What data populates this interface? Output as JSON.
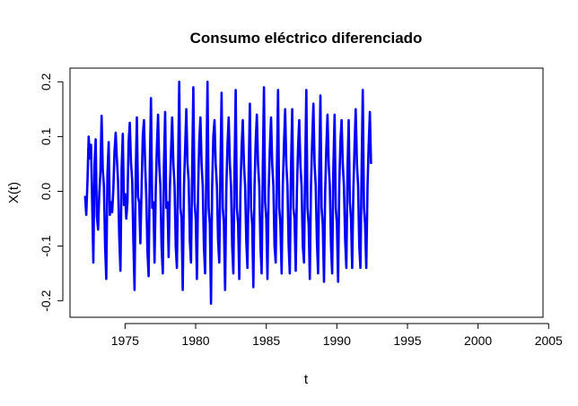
{
  "chart_data": {
    "type": "line",
    "title": "Consumo eléctrico diferenciado",
    "xlabel": "t",
    "ylabel": "X(t)",
    "xlim": [
      1971.1,
      2004.6
    ],
    "ylim": [
      -0.23,
      0.225
    ],
    "x_ticks": [
      1975,
      1980,
      1985,
      1990,
      1995,
      2000,
      2005
    ],
    "x_tick_labels": [
      "1975",
      "1980",
      "1985",
      "1990",
      "1995",
      "2000",
      "2005"
    ],
    "y_ticks": [
      -0.2,
      -0.1,
      0.0,
      0.1,
      0.2
    ],
    "y_tick_labels": [
      "-0.2",
      "-0.1",
      "0.0",
      "0.1",
      "0.2"
    ],
    "grid": false,
    "legend": "none",
    "series": [
      {
        "color": "#0000ff",
        "frequency": 12,
        "start": 1972.17,
        "values": [
          -0.008,
          -0.043,
          0.02,
          0.1,
          0.06,
          0.085,
          -0.02,
          -0.13,
          0.05,
          0.095,
          -0.045,
          -0.07,
          -0.005,
          0.035,
          0.138,
          0.04,
          0.01,
          -0.1,
          -0.16,
          0.03,
          0.09,
          -0.043,
          -0.02,
          -0.038,
          0.004,
          0.073,
          0.107,
          0.06,
          0.02,
          -0.08,
          -0.145,
          0.04,
          0.105,
          -0.025,
          -0.005,
          -0.05,
          -0.02,
          0.09,
          0.125,
          0.05,
          0.02,
          -0.09,
          -0.18,
          0.03,
          0.135,
          -0.01,
          -0.02,
          -0.095,
          0.01,
          0.1,
          0.13,
          0.05,
          -0.01,
          -0.11,
          -0.155,
          0.04,
          0.17,
          -0.03,
          -0.02,
          -0.13,
          0.0,
          0.08,
          0.14,
          0.05,
          0.01,
          -0.1,
          -0.15,
          0.05,
          0.145,
          -0.03,
          -0.02,
          -0.12,
          0.0,
          0.07,
          0.135,
          0.05,
          0.01,
          -0.1,
          -0.14,
          0.04,
          0.2,
          -0.03,
          -0.05,
          -0.18,
          0.01,
          0.08,
          0.15,
          0.05,
          0.02,
          -0.09,
          -0.13,
          0.04,
          0.19,
          -0.02,
          -0.05,
          -0.16,
          0.0,
          0.09,
          0.135,
          0.05,
          0.01,
          -0.1,
          -0.15,
          0.04,
          0.2,
          -0.03,
          -0.06,
          -0.205,
          0.01,
          0.1,
          0.13,
          0.05,
          0.01,
          -0.09,
          -0.13,
          0.04,
          0.18,
          -0.03,
          -0.06,
          -0.18,
          0.0,
          0.085,
          0.135,
          0.05,
          0.01,
          -0.1,
          -0.15,
          0.04,
          0.185,
          -0.03,
          -0.06,
          -0.16,
          0.0,
          0.08,
          0.13,
          0.05,
          0.01,
          -0.09,
          -0.14,
          0.04,
          0.16,
          -0.03,
          -0.06,
          -0.175,
          0.01,
          0.09,
          0.14,
          0.05,
          0.01,
          -0.1,
          -0.15,
          0.04,
          0.19,
          -0.02,
          -0.05,
          -0.16,
          0.0,
          0.08,
          0.135,
          0.05,
          0.01,
          -0.1,
          -0.13,
          0.04,
          0.185,
          -0.03,
          -0.06,
          -0.15,
          0.01,
          0.085,
          0.15,
          0.05,
          0.01,
          -0.1,
          -0.15,
          0.04,
          0.15,
          -0.03,
          -0.05,
          -0.145,
          0.0,
          0.08,
          0.13,
          0.05,
          0.01,
          -0.1,
          -0.13,
          0.04,
          0.185,
          -0.03,
          -0.06,
          -0.16,
          0.01,
          0.09,
          0.16,
          0.05,
          0.01,
          -0.09,
          -0.15,
          0.04,
          0.175,
          -0.03,
          -0.06,
          -0.165,
          0.0,
          0.08,
          0.14,
          0.05,
          0.01,
          -0.1,
          -0.15,
          0.04,
          0.14,
          -0.03,
          -0.06,
          -0.165,
          0.01,
          0.09,
          0.13,
          0.05,
          0.01,
          -0.09,
          -0.14,
          0.04,
          0.13,
          -0.02,
          -0.05,
          -0.14,
          0.0,
          0.08,
          0.15,
          0.05,
          0.01,
          -0.1,
          -0.14,
          0.04,
          0.185,
          -0.03,
          -0.06,
          -0.14,
          0.01,
          0.085,
          0.145,
          0.05
        ]
      }
    ]
  }
}
